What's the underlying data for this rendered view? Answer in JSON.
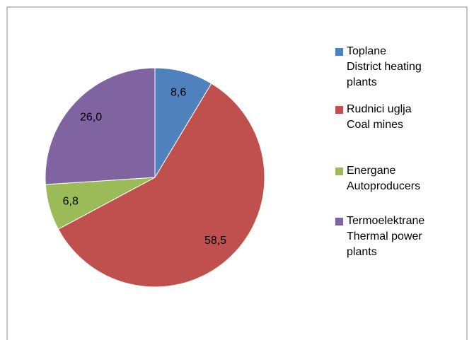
{
  "chart_data": {
    "type": "pie",
    "series": [
      {
        "name": "Toplane\nDistrict heating\nplants",
        "color": "#4f81bd",
        "values": [
          8.6
        ],
        "value_labels": [
          "8,6"
        ]
      },
      {
        "name": "Rudnici uglja\nCoal mines",
        "color": "#c0504d",
        "values": [
          58.5
        ],
        "value_labels": [
          "58,5"
        ]
      },
      {
        "name": "Energane\nAutoproducers",
        "color": "#9bbb59",
        "values": [
          6.8
        ],
        "value_labels": [
          "6,8"
        ]
      },
      {
        "name": "Termoelektrane\nThermal power\nplants",
        "color": "#8064a2",
        "values": [
          26.0
        ],
        "value_labels": [
          "26,0"
        ]
      }
    ],
    "legend": "right"
  }
}
